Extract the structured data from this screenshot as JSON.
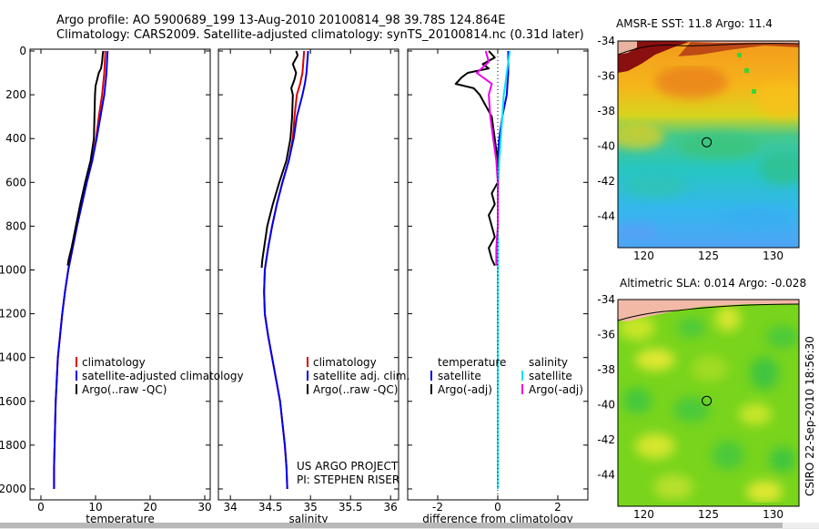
{
  "title": {
    "line1": "Argo profile: AO 5900689_199 13-Aug-2010 20100814_98 39.78S 124.864E",
    "line2": "Climatology: CARS2009. Satellite-adjusted climatology: synTS_20100814.nc (0.31d later)"
  },
  "side_label": "CSIRO 22-Sep-2010 18:56:30",
  "colors": {
    "climatology": "#dd0000",
    "satellite": "#0000ee",
    "argo": "#000000",
    "salinity_satellite": "#00e5ee",
    "salinity_argo": "#ee00ee"
  },
  "chart_data": [
    {
      "type": "line",
      "id": "temperature",
      "xlabel": "temperature",
      "xlim": [
        -2,
        31
      ],
      "xticks": [
        0,
        10,
        20,
        30
      ],
      "ylim": [
        0,
        2050
      ],
      "yticks": [
        0,
        200,
        400,
        600,
        800,
        1000,
        1200,
        1400,
        1600,
        1800,
        2000
      ],
      "legend": [
        "climatology",
        "satellite-adjusted climatology",
        "Argo(..raw -QC)"
      ],
      "series": [
        {
          "name": "climatology",
          "color": "#dd0000",
          "depth": [
            0,
            50,
            100,
            150,
            200,
            300,
            400,
            500,
            600,
            700,
            800,
            900,
            1000,
            1100,
            1200,
            1300,
            1400,
            1500,
            1600,
            1700,
            1800,
            1900,
            2000
          ],
          "values": [
            11.8,
            11.7,
            11.6,
            11.4,
            11.2,
            10.6,
            10.1,
            9.4,
            8.4,
            7.5,
            6.6,
            5.8,
            5.0,
            4.4,
            3.9,
            3.5,
            3.1,
            2.9,
            2.7,
            2.6,
            2.5,
            2.4,
            2.4
          ]
        },
        {
          "name": "satellite-adjusted climatology",
          "color": "#0000ee",
          "depth": [
            0,
            50,
            100,
            150,
            200,
            300,
            400,
            500,
            600,
            700,
            800,
            900,
            1000,
            1100,
            1200,
            1300,
            1400,
            1500,
            1600,
            1700,
            1800,
            1900,
            2000
          ],
          "values": [
            12.2,
            12.1,
            12.0,
            11.8,
            11.6,
            10.9,
            10.2,
            9.4,
            8.4,
            7.5,
            6.6,
            5.8,
            5.0,
            4.4,
            3.9,
            3.5,
            3.1,
            2.9,
            2.7,
            2.6,
            2.5,
            2.4,
            2.4
          ]
        },
        {
          "name": "Argo(..raw -QC)",
          "color": "#000000",
          "depth": [
            0,
            20,
            50,
            80,
            100,
            130,
            160,
            200,
            300,
            400,
            500,
            600,
            700,
            800,
            850,
            900,
            950,
            980
          ],
          "values": [
            11.4,
            11.3,
            11.2,
            11.0,
            10.6,
            10.3,
            10.0,
            9.9,
            9.8,
            9.7,
            9.1,
            8.1,
            7.2,
            6.4,
            6.0,
            5.6,
            5.1,
            4.9
          ]
        }
      ]
    },
    {
      "type": "line",
      "id": "salinity",
      "xlabel": "salinity",
      "xlim": [
        33.85,
        36.1
      ],
      "xticks": [
        34,
        34.5,
        35,
        35.5,
        36
      ],
      "ylim": [
        0,
        2050
      ],
      "legend": [
        "climatology",
        "satellite adj. clim.",
        "Argo(..raw -QC)"
      ],
      "annotation": [
        "US ARGO PROJECT",
        "PI: STEPHEN RISER"
      ],
      "series": [
        {
          "name": "climatology",
          "color": "#dd0000",
          "depth": [
            0,
            100,
            150,
            200,
            300,
            400,
            500,
            600,
            700,
            800,
            900,
            1000,
            1100,
            1200,
            1300,
            1400,
            1500,
            1600,
            1700,
            1800,
            1900,
            2000
          ],
          "values": [
            34.92,
            34.9,
            34.87,
            34.83,
            34.8,
            34.78,
            34.73,
            34.65,
            34.58,
            34.52,
            34.47,
            34.43,
            34.42,
            34.43,
            34.47,
            34.52,
            34.57,
            34.62,
            34.65,
            34.68,
            34.7,
            34.71
          ]
        },
        {
          "name": "satellite adj. clim.",
          "color": "#0000ee",
          "depth": [
            0,
            100,
            150,
            200,
            300,
            400,
            500,
            600,
            700,
            800,
            900,
            1000,
            1100,
            1200,
            1300,
            1400,
            1500,
            1600,
            1700,
            1800,
            1900,
            2000
          ],
          "values": [
            34.97,
            34.95,
            34.93,
            34.9,
            34.83,
            34.79,
            34.73,
            34.65,
            34.58,
            34.52,
            34.47,
            34.43,
            34.42,
            34.43,
            34.47,
            34.52,
            34.57,
            34.62,
            34.65,
            34.68,
            34.7,
            34.71
          ]
        },
        {
          "name": "Argo(..raw -QC)",
          "color": "#000000",
          "depth": [
            0,
            20,
            60,
            100,
            130,
            170,
            200,
            300,
            400,
            500,
            600,
            700,
            800,
            900,
            950,
            990
          ],
          "values": [
            34.82,
            34.84,
            34.78,
            34.82,
            34.8,
            34.76,
            34.78,
            34.77,
            34.75,
            34.7,
            34.61,
            34.53,
            34.46,
            34.42,
            34.4,
            34.39
          ]
        }
      ]
    },
    {
      "type": "line",
      "id": "difference",
      "xlabel": "difference from climatology",
      "xlim": [
        -3,
        3
      ],
      "xticks": [
        -2,
        0,
        2
      ],
      "ylim": [
        0,
        2050
      ],
      "legend_temperature": {
        "header": "temperature",
        "items": [
          "satellite",
          "Argo(-adj)"
        ]
      },
      "legend_salinity": {
        "header": "salinity",
        "items": [
          "satellite",
          "Argo(-adj)"
        ]
      },
      "series": [
        {
          "name": "temperature satellite",
          "color": "#0000ee",
          "depth": [
            0,
            100,
            200,
            300,
            400,
            500,
            600,
            700,
            800,
            900,
            1000,
            1200,
            1400,
            1600,
            1800,
            2000
          ],
          "values": [
            0.35,
            0.35,
            0.3,
            0.15,
            0.05,
            0.0,
            0.0,
            0.0,
            0.0,
            0.0,
            0.0,
            0.0,
            0.0,
            0.0,
            0.0,
            0.0
          ]
        },
        {
          "name": "temperature Argo(-adj)",
          "color": "#000000",
          "depth": [
            0,
            30,
            60,
            80,
            100,
            120,
            150,
            170,
            200,
            250,
            300,
            400,
            500,
            600,
            650,
            700,
            750,
            800,
            850,
            900,
            950,
            980
          ],
          "values": [
            -0.3,
            -0.1,
            -0.5,
            -0.3,
            -1.0,
            -1.2,
            -1.4,
            -0.8,
            -0.6,
            -0.4,
            -0.2,
            -0.1,
            0.0,
            0.0,
            -0.2,
            -0.1,
            -0.3,
            -0.2,
            -0.1,
            -0.3,
            -0.2,
            -0.1
          ]
        },
        {
          "name": "salinity satellite",
          "color": "#00e5ee",
          "depth": [
            0,
            50,
            100,
            150,
            200,
            300,
            400,
            500,
            600,
            700,
            800,
            900,
            1000,
            1200,
            1500,
            1800,
            2000
          ],
          "values": [
            0.4,
            0.35,
            0.3,
            0.25,
            0.2,
            0.15,
            0.1,
            0.05,
            0.02,
            0.0,
            0.0,
            0.0,
            0.0,
            0.0,
            0.0,
            0.0,
            0.0
          ]
        },
        {
          "name": "salinity Argo(-adj)",
          "color": "#ee00ee",
          "depth": [
            0,
            50,
            100,
            150,
            200,
            300,
            400,
            500,
            600,
            700,
            800,
            900,
            980
          ],
          "values": [
            -0.4,
            -0.3,
            -0.7,
            -0.2,
            -0.3,
            -0.25,
            -0.15,
            -0.05,
            0.0,
            0.0,
            0.0,
            -0.05,
            -0.05
          ]
        }
      ]
    },
    {
      "type": "heatmap",
      "id": "sst-map",
      "title": "AMSR-E SST: 11.8  Argo: 11.4",
      "xlim": [
        118,
        132
      ],
      "ylim": [
        -45.8,
        -34
      ],
      "xticks": [
        120,
        125,
        130
      ],
      "yticks": [
        -34,
        -36,
        -38,
        -40,
        -42,
        -44
      ],
      "marker": {
        "lon": 124.864,
        "lat": -39.78
      }
    },
    {
      "type": "heatmap",
      "id": "sla-map",
      "title": "Altimetric SLA: 0.014  Argo: -0.028",
      "xlim": [
        118,
        132
      ],
      "ylim": [
        -45.8,
        -34
      ],
      "xticks": [
        120,
        125,
        130
      ],
      "yticks": [
        -34,
        -36,
        -38,
        -40,
        -42,
        -44
      ],
      "marker": {
        "lon": 124.864,
        "lat": -39.78
      }
    }
  ]
}
